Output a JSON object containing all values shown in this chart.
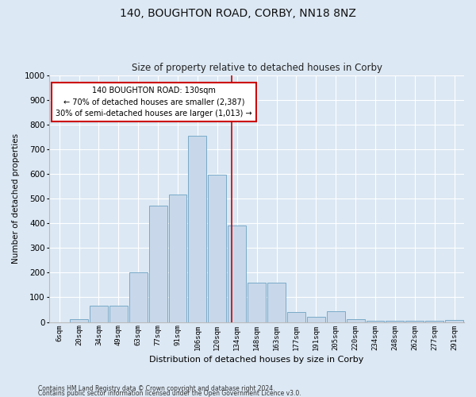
{
  "title1": "140, BOUGHTON ROAD, CORBY, NN18 8NZ",
  "title2": "Size of property relative to detached houses in Corby",
  "xlabel": "Distribution of detached houses by size in Corby",
  "ylabel": "Number of detached properties",
  "footnote1": "Contains HM Land Registry data © Crown copyright and database right 2024.",
  "footnote2": "Contains public sector information licensed under the Open Government Licence v3.0.",
  "annotation_line1": "140 BOUGHTON ROAD: 130sqm",
  "annotation_line2": "← 70% of detached houses are smaller (2,387)",
  "annotation_line3": "30% of semi-detached houses are larger (1,013) →",
  "bar_labels": [
    "6sqm",
    "20sqm",
    "34sqm",
    "49sqm",
    "63sqm",
    "77sqm",
    "91sqm",
    "106sqm",
    "120sqm",
    "134sqm",
    "148sqm",
    "163sqm",
    "177sqm",
    "191sqm",
    "205sqm",
    "220sqm",
    "234sqm",
    "248sqm",
    "262sqm",
    "277sqm",
    "291sqm"
  ],
  "bar_values": [
    0,
    12,
    65,
    65,
    200,
    470,
    515,
    755,
    595,
    390,
    160,
    160,
    40,
    20,
    42,
    10,
    5,
    5,
    4,
    4,
    8
  ],
  "bar_color": "#c8d8ea",
  "bar_edge_color": "#7aaac8",
  "reference_line_color": "#cc0000",
  "ylim": [
    0,
    1000
  ],
  "yticks": [
    0,
    100,
    200,
    300,
    400,
    500,
    600,
    700,
    800,
    900,
    1000
  ],
  "background_color": "#dce8f4",
  "grid_color": "#ffffff",
  "annotation_box_color": "#ffffff",
  "annotation_box_edge": "#cc0000",
  "fig_width": 6.0,
  "fig_height": 5.0,
  "dpi": 100
}
